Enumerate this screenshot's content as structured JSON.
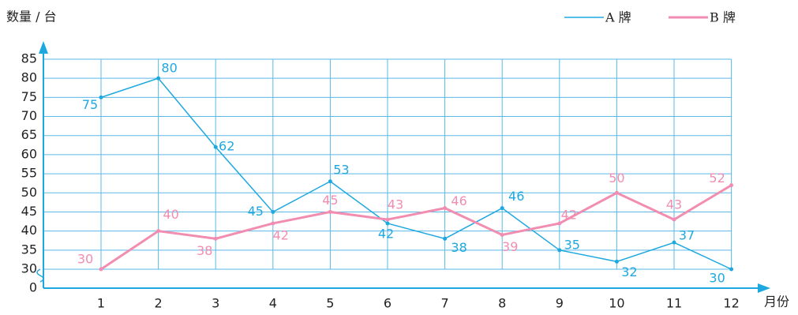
{
  "chart_data": {
    "type": "line",
    "y_label": "数量 / 台",
    "x_label": "月份",
    "categories": [
      "1",
      "2",
      "3",
      "4",
      "5",
      "6",
      "7",
      "8",
      "9",
      "10",
      "11",
      "12"
    ],
    "series": [
      {
        "name": "A 牌",
        "color": "#1ea8e0",
        "values": [
          75,
          80,
          62,
          45,
          53,
          42,
          38,
          46,
          35,
          32,
          37,
          30
        ]
      },
      {
        "name": "B 牌",
        "color": "#f28db2",
        "values": [
          30,
          40,
          38,
          42,
          45,
          43,
          46,
          39,
          42,
          50,
          43,
          52
        ]
      }
    ],
    "ylim": [
      0,
      85
    ],
    "axis_break": [
      0,
      30
    ],
    "yticks": [
      0,
      30,
      35,
      40,
      45,
      50,
      55,
      60,
      65,
      70,
      75,
      80,
      85
    ],
    "grid": true,
    "data_labels": true,
    "legend": "top-right"
  }
}
